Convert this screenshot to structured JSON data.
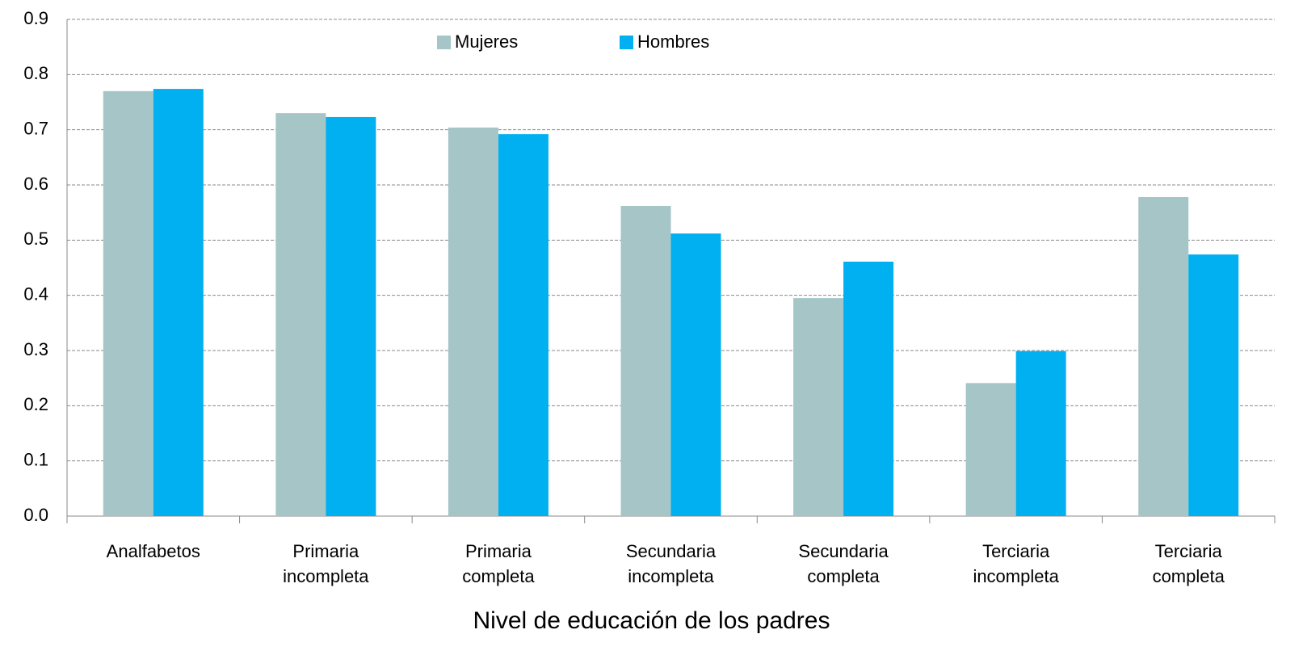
{
  "chart_data": {
    "type": "bar",
    "x_label": "Nivel de educación de los padres",
    "categories": [
      "Analfabetos",
      "Primaria incompleta",
      "Primaria completa",
      "Secundaria incompleta",
      "Secundaria completa",
      "Terciaria incompleta",
      "Terciaria completa"
    ],
    "series": [
      {
        "name": "Mujeres",
        "color": "#a5c5c7",
        "values": [
          0.77,
          0.73,
          0.704,
          0.562,
          0.395,
          0.241,
          0.578
        ]
      },
      {
        "name": "Hombres",
        "color": "#00b0f0",
        "values": [
          0.774,
          0.723,
          0.692,
          0.512,
          0.461,
          0.299,
          0.474
        ]
      }
    ],
    "ylim": [
      0,
      0.9
    ],
    "yticks": [
      {
        "value": 0,
        "label": "0.0"
      },
      0.1,
      0.2,
      0.3,
      0.4,
      0.5,
      0.6,
      0.7,
      0.8,
      0.9
    ],
    "grid": true,
    "legend": "top"
  }
}
